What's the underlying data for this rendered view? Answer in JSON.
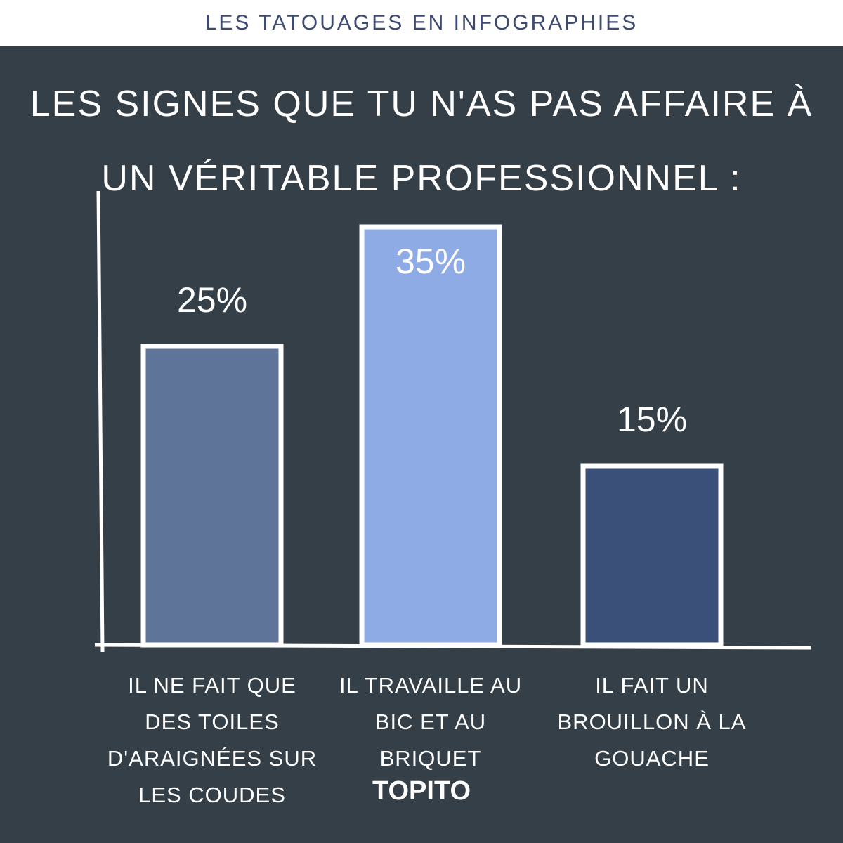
{
  "header": "LES TATOUAGES EN INFOGRAPHIES",
  "chart_data": {
    "type": "bar",
    "title": "LES SIGNES QUE TU N'AS PAS AFFAIRE À UN VÉRITABLE PROFESSIONNEL :",
    "categories": [
      "IL NE FAIT QUE DES TOILES D'ARAIGNÉES SUR LES COUDES",
      "IL TRAVAILLE AU BIC ET AU BRIQUET",
      "IL FAIT UN BROUILLON À LA GOUACHE"
    ],
    "values": [
      25,
      35,
      15
    ],
    "value_labels": [
      "25%",
      "35%",
      "15%"
    ],
    "colors": [
      "#5f7499",
      "#8eabe6",
      "#3a5078"
    ],
    "ylim": [
      0,
      38
    ]
  },
  "footer": "TOPITO"
}
